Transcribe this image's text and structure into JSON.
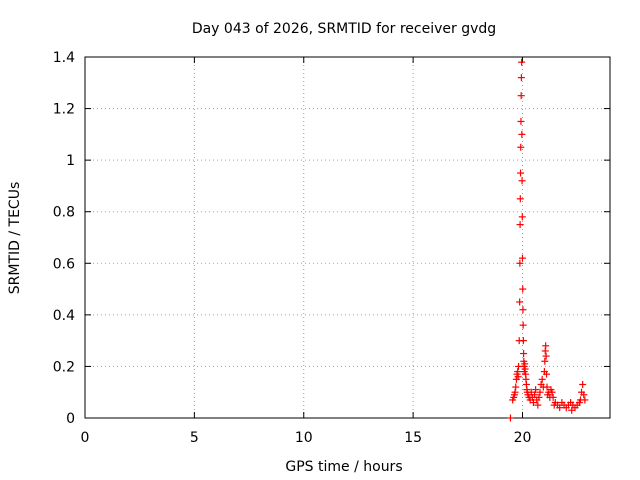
{
  "chart_data": {
    "type": "scatter",
    "title": "Day 043 of 2026, SRMTID for receiver gvdg",
    "xlabel": "GPS time / hours",
    "ylabel": "SRMTID / TECUs",
    "xlim": [
      0,
      24
    ],
    "ylim": [
      0,
      1.4
    ],
    "grid": true,
    "marker": "+",
    "marker_color": "#ff0000",
    "x_ticks": [
      0,
      5,
      10,
      15,
      20
    ],
    "x_tick_labels": [
      "0",
      "5",
      "10",
      "15",
      "20"
    ],
    "y_ticks": [
      0,
      0.2,
      0.4,
      0.6,
      0.8,
      1.0,
      1.2,
      1.4
    ],
    "y_tick_labels": [
      "0",
      "0.2",
      "0.4",
      "0.6",
      "0.8",
      "1",
      "1.2",
      "1.4"
    ],
    "series": [
      {
        "name": "SRMTID",
        "x": [
          19.45,
          19.55,
          19.6,
          19.63,
          19.66,
          19.69,
          19.72,
          19.75,
          19.78,
          19.8,
          19.82,
          19.85,
          19.87,
          19.88,
          19.89,
          19.9,
          19.91,
          19.92,
          19.93,
          19.94,
          19.95,
          19.96,
          19.97,
          19.98,
          19.99,
          20.0,
          20.01,
          20.02,
          20.03,
          20.04,
          20.05,
          20.06,
          20.07,
          20.08,
          20.1,
          20.12,
          20.14,
          20.16,
          20.18,
          20.2,
          20.22,
          20.25,
          20.3,
          20.35,
          20.4,
          20.45,
          20.5,
          20.55,
          20.6,
          20.65,
          20.7,
          20.75,
          20.8,
          20.85,
          20.9,
          20.95,
          21.0,
          21.02,
          21.04,
          21.06,
          21.08,
          21.1,
          21.12,
          21.15,
          21.2,
          21.25,
          21.3,
          21.35,
          21.4,
          21.45,
          21.5,
          21.6,
          21.7,
          21.8,
          21.9,
          22.0,
          22.1,
          22.2,
          22.25,
          22.3,
          22.4,
          22.5,
          22.6,
          22.65,
          22.7,
          22.75,
          22.8,
          22.85
        ],
        "y": [
          0.0,
          0.07,
          0.08,
          0.09,
          0.1,
          0.12,
          0.15,
          0.17,
          0.18,
          0.16,
          0.2,
          0.3,
          0.45,
          0.6,
          0.75,
          0.85,
          0.95,
          1.05,
          1.15,
          1.25,
          1.32,
          1.38,
          1.1,
          0.92,
          0.78,
          0.62,
          0.5,
          0.42,
          0.36,
          0.3,
          0.25,
          0.22,
          0.2,
          0.18,
          0.21,
          0.19,
          0.17,
          0.15,
          0.13,
          0.11,
          0.1,
          0.09,
          0.08,
          0.07,
          0.1,
          0.08,
          0.06,
          0.09,
          0.11,
          0.07,
          0.05,
          0.08,
          0.1,
          0.13,
          0.15,
          0.12,
          0.18,
          0.22,
          0.26,
          0.28,
          0.24,
          0.17,
          0.12,
          0.09,
          0.1,
          0.08,
          0.11,
          0.1,
          0.08,
          0.05,
          0.06,
          0.05,
          0.04,
          0.06,
          0.05,
          0.04,
          0.05,
          0.06,
          0.03,
          0.05,
          0.04,
          0.05,
          0.06,
          0.07,
          0.1,
          0.13,
          0.09,
          0.07
        ]
      }
    ]
  }
}
